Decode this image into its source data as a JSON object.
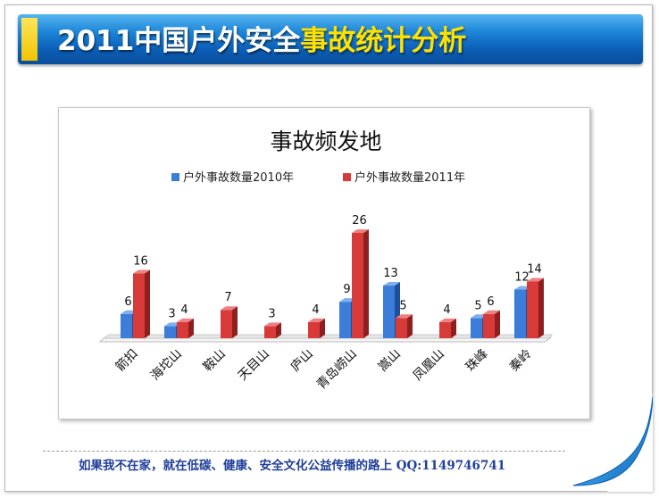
{
  "slide": {
    "title_white": "2011中国户外安全",
    "title_yellow": "事故统计分析",
    "footer": "如果我不在家，就在低碳、健康、安全文化公益传播的路上  QQ:1149746741"
  },
  "colors": {
    "banner": "#0b5fb8",
    "title_highlight": "#ffe100",
    "series_2010": "#3b7dd8",
    "series_2011": "#d83a3a",
    "footer_text": "#1f3f9a"
  },
  "chart_data": {
    "type": "bar",
    "title": "事故频发地",
    "categories": [
      "箭扣",
      "海坨山",
      "鞍山",
      "天目山",
      "庐山",
      "青岛崂山",
      "嵩山",
      "凤凰山",
      "珠峰",
      "秦岭"
    ],
    "series": [
      {
        "name": "户外事故数量2010年",
        "values": [
          6,
          3,
          null,
          null,
          null,
          9,
          13,
          null,
          5,
          12
        ]
      },
      {
        "name": "户外事故数量2011年",
        "values": [
          16,
          4,
          7,
          3,
          4,
          26,
          5,
          4,
          6,
          14
        ]
      }
    ],
    "ylim": [
      0,
      30
    ],
    "grid": false,
    "legend": "top",
    "data_labels": true,
    "style": "3d-clustered-column"
  }
}
